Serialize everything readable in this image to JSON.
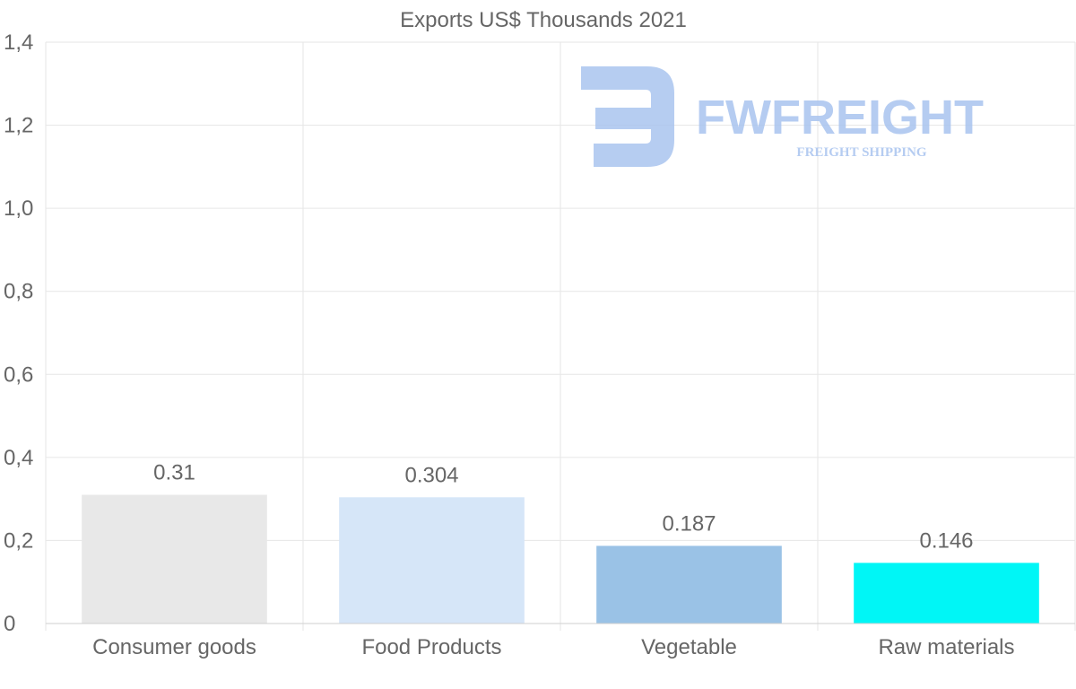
{
  "chart_data": {
    "type": "bar",
    "title": "Exports US$ Thousands 2021",
    "xlabel": "",
    "ylabel": "",
    "categories": [
      "Consumer goods",
      "Food Products",
      "Vegetable",
      "Raw materials"
    ],
    "values": [
      0.31,
      0.304,
      0.187,
      0.146
    ],
    "value_labels": [
      "0.31",
      "0.304",
      "0.187",
      "0.146"
    ],
    "colors": [
      "#e8e8e8",
      "#d6e6f8",
      "#9ac2e6",
      "#00f6f6"
    ],
    "ylim": [
      0,
      1.4
    ],
    "yticks": [
      0,
      0.2,
      0.4,
      0.6,
      0.8,
      1.0,
      1.2,
      1.4
    ],
    "ytick_labels": [
      "0",
      "0,2",
      "0,4",
      "0,6",
      "0,8",
      "1,0",
      "1,2",
      "1,4"
    ],
    "grid": true,
    "legend": "none"
  },
  "watermark": {
    "brand": "FWFREIGHT",
    "tagline": "FREIGHT SHIPPING",
    "color": "#a9c4ef"
  }
}
